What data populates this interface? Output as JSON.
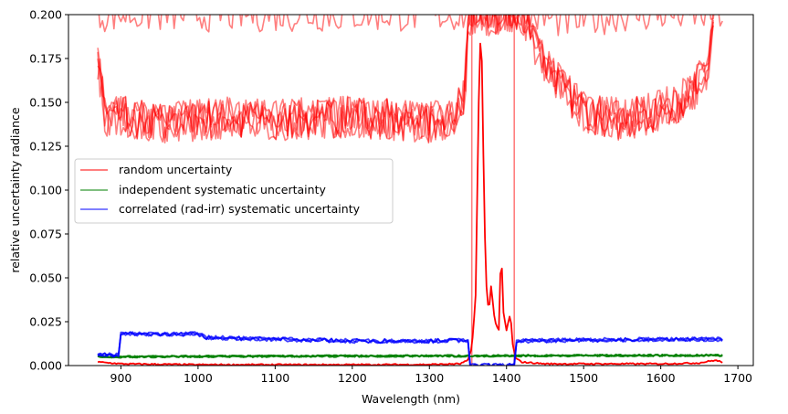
{
  "chart_data": {
    "type": "line",
    "title": "",
    "xlabel": "Wavelength (nm)",
    "ylabel": "relative uncertainty radiance",
    "xlim": [
      832,
      1720
    ],
    "ylim": [
      0.0,
      0.2
    ],
    "xticks": [
      900,
      1000,
      1100,
      1200,
      1300,
      1400,
      1500,
      1600,
      1700
    ],
    "yticks": [
      0.0,
      0.025,
      0.05,
      0.075,
      0.1,
      0.125,
      0.15,
      0.175,
      0.2
    ],
    "xtick_labels": [
      "900",
      "1000",
      "1100",
      "1200",
      "1300",
      "1400",
      "1500",
      "1600",
      "1700"
    ],
    "ytick_labels": [
      "0.000",
      "0.025",
      "0.050",
      "0.075",
      "0.100",
      "0.125",
      "0.150",
      "0.175",
      "0.200"
    ],
    "grid": false,
    "legend_position": "center-left",
    "legend": [
      {
        "label": "random uncertainty",
        "color": "#ff0000"
      },
      {
        "label": "independent systematic uncertainty",
        "color": "#008000"
      },
      {
        "label": "correlated (rad-irr) systematic uncertainty",
        "color": "#0000ff"
      }
    ],
    "series": [
      {
        "name": "random uncertainty",
        "color": "#ff0000",
        "alpha": 0.5,
        "note": "several noisy traces per series (transparent)",
        "points": [
          [
            870,
            0.175
          ],
          [
            880,
            0.14
          ],
          [
            900,
            0.142
          ],
          [
            950,
            0.138
          ],
          [
            1000,
            0.14
          ],
          [
            1050,
            0.142
          ],
          [
            1100,
            0.14
          ],
          [
            1150,
            0.141
          ],
          [
            1200,
            0.142
          ],
          [
            1250,
            0.14
          ],
          [
            1300,
            0.138
          ],
          [
            1330,
            0.142
          ],
          [
            1345,
            0.155
          ],
          [
            1352,
            0.2
          ],
          [
            1410,
            0.2
          ],
          [
            1420,
            0.2
          ],
          [
            1430,
            0.19
          ],
          [
            1450,
            0.17
          ],
          [
            1500,
            0.145
          ],
          [
            1550,
            0.14
          ],
          [
            1600,
            0.145
          ],
          [
            1640,
            0.155
          ],
          [
            1660,
            0.17
          ],
          [
            1670,
            0.2
          ]
        ],
        "upper_trace_points": [
          [
            870,
            0.2
          ],
          [
            1000,
            0.2
          ],
          [
            1100,
            0.2
          ],
          [
            1200,
            0.2
          ],
          [
            1300,
            0.2
          ],
          [
            1350,
            0.2
          ],
          [
            1420,
            0.2
          ],
          [
            1480,
            0.196
          ],
          [
            1550,
            0.2
          ],
          [
            1640,
            0.2
          ],
          [
            1680,
            0.2
          ]
        ],
        "spikes_x": [
          1355,
          1410
        ]
      },
      {
        "name": "random uncertainty (near-zero trace)",
        "color": "#ff0000",
        "alpha": 1.0,
        "points": [
          [
            870,
            0.002
          ],
          [
            900,
            0.001
          ],
          [
            1000,
            0.0005
          ],
          [
            1100,
            0.0005
          ],
          [
            1200,
            0.0005
          ],
          [
            1300,
            0.0006
          ],
          [
            1340,
            0.001
          ],
          [
            1350,
            0.003
          ],
          [
            1355,
            0.01
          ],
          [
            1360,
            0.04
          ],
          [
            1364,
            0.15
          ],
          [
            1367,
            0.2
          ],
          [
            1370,
            0.12
          ],
          [
            1373,
            0.05
          ],
          [
            1377,
            0.03
          ],
          [
            1380,
            0.045
          ],
          [
            1385,
            0.025
          ],
          [
            1390,
            0.02
          ],
          [
            1393,
            0.068
          ],
          [
            1396,
            0.03
          ],
          [
            1400,
            0.02
          ],
          [
            1405,
            0.03
          ],
          [
            1408,
            0.012
          ],
          [
            1412,
            0.004
          ],
          [
            1420,
            0.002
          ],
          [
            1450,
            0.001
          ],
          [
            1500,
            0.001
          ],
          [
            1600,
            0.001
          ],
          [
            1650,
            0.0015
          ],
          [
            1670,
            0.003
          ],
          [
            1680,
            0.002
          ]
        ]
      },
      {
        "name": "independent systematic uncertainty",
        "color": "#008000",
        "alpha": 1.0,
        "points": [
          [
            870,
            0.005
          ],
          [
            900,
            0.005
          ],
          [
            1000,
            0.0052
          ],
          [
            1100,
            0.0053
          ],
          [
            1200,
            0.0054
          ],
          [
            1300,
            0.0055
          ],
          [
            1350,
            0.0055
          ],
          [
            1400,
            0.0056
          ],
          [
            1500,
            0.0057
          ],
          [
            1600,
            0.0058
          ],
          [
            1680,
            0.0058
          ]
        ]
      },
      {
        "name": "correlated (rad-irr) systematic uncertainty",
        "color": "#0000ff",
        "alpha": 1.0,
        "points": [
          [
            870,
            0.006
          ],
          [
            898,
            0.006
          ],
          [
            900,
            0.018
          ],
          [
            950,
            0.018
          ],
          [
            1000,
            0.018
          ],
          [
            1010,
            0.016
          ],
          [
            1100,
            0.015
          ],
          [
            1200,
            0.014
          ],
          [
            1300,
            0.014
          ],
          [
            1350,
            0.0145
          ],
          [
            1353,
            0.0
          ],
          [
            1410,
            0.0
          ],
          [
            1413,
            0.014
          ],
          [
            1500,
            0.0145
          ],
          [
            1600,
            0.015
          ],
          [
            1680,
            0.015
          ]
        ]
      }
    ]
  }
}
